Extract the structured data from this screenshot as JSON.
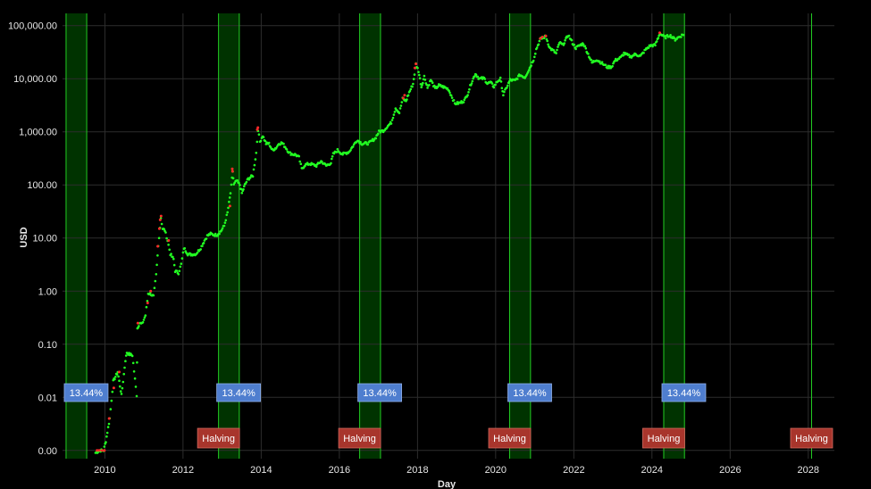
{
  "chart_data": {
    "type": "scatter",
    "xlabel": "Day",
    "ylabel": "USD",
    "y_scale": "log",
    "x_range": [
      "2008-12-01",
      "2028-09-01"
    ],
    "y_range": [
      0.0007,
      170000
    ],
    "x_tick_labels": [
      "2010",
      "2012",
      "2014",
      "2016",
      "2018",
      "2020",
      "2022",
      "2024",
      "2026",
      "2028"
    ],
    "x_tick_dates": [
      "2010-01-01",
      "2012-01-01",
      "2014-01-01",
      "2016-01-01",
      "2018-01-01",
      "2020-01-01",
      "2022-01-01",
      "2024-01-01",
      "2026-01-01",
      "2028-01-01"
    ],
    "y_tick_labels": [
      "0.00",
      "0.01",
      "0.10",
      "1.00",
      "10.00",
      "100.00",
      "1,000.00",
      "10,000.00",
      "100,000.00"
    ],
    "y_tick_values": [
      0.001,
      0.01,
      0.1,
      1,
      10,
      100,
      1000,
      10000,
      100000
    ],
    "grid": true,
    "background": "#000000",
    "colors": {
      "normal_point": "#22ff22",
      "highlight_point": "#ff2a2a",
      "band_fill": "#003300",
      "band_edge": "#22cc22",
      "percent_label_bg": "#4f7ecf",
      "halving_label_bg": "#a8352c",
      "axis_text": "#e6e6e6",
      "grid": "#2d2d2d"
    },
    "shaded_periods": [
      {
        "start": "2009-01-03",
        "end": "2009-07-15",
        "label": "13.44%"
      },
      {
        "start": "2012-11-28",
        "end": "2013-06-10",
        "label": "13.44%"
      },
      {
        "start": "2016-07-09",
        "end": "2017-01-20",
        "label": "13.44%"
      },
      {
        "start": "2020-05-11",
        "end": "2020-11-22",
        "label": "13.44%"
      },
      {
        "start": "2024-04-20",
        "end": "2024-10-31",
        "label": "13.44%"
      }
    ],
    "halving_markers": [
      {
        "date": "2012-11-28",
        "label": "Halving"
      },
      {
        "date": "2016-07-09",
        "label": "Halving"
      },
      {
        "date": "2020-05-11",
        "label": "Halving"
      },
      {
        "date": "2024-04-20",
        "label": "Halving"
      },
      {
        "date": "2028-02-01",
        "label": "Halving"
      }
    ],
    "series": [
      {
        "points": [
          [
            "2009-10-05",
            0.0009
          ],
          [
            "2009-11-15",
            0.001
          ],
          [
            "2009-12-20",
            0.001
          ],
          [
            "2010-01-10",
            0.0015
          ],
          [
            "2010-02-15",
            0.004
          ],
          [
            "2010-03-20",
            0.02
          ],
          [
            "2010-05-01",
            0.03
          ],
          [
            "2010-06-05",
            0.011
          ],
          [
            "2010-07-12",
            0.05
          ],
          [
            "2010-07-25",
            0.07
          ],
          [
            "2010-08-15",
            0.065
          ],
          [
            "2010-09-15",
            0.062
          ],
          [
            "2010-10-25",
            0.011
          ],
          [
            "2010-11-01",
            0.2
          ],
          [
            "2010-11-20",
            0.25
          ],
          [
            "2010-12-15",
            0.24
          ],
          [
            "2011-01-15",
            0.35
          ],
          [
            "2011-02-10",
            0.9
          ],
          [
            "2011-03-01",
            0.9
          ],
          [
            "2011-04-01",
            0.8
          ],
          [
            "2011-04-25",
            2.0
          ],
          [
            "2011-05-15",
            7.0
          ],
          [
            "2011-06-08",
            24.0
          ],
          [
            "2011-06-25",
            15.0
          ],
          [
            "2011-07-15",
            14.0
          ],
          [
            "2011-08-10",
            9.0
          ],
          [
            "2011-09-05",
            5.0
          ],
          [
            "2011-10-05",
            4.0
          ],
          [
            "2011-10-20",
            2.4
          ],
          [
            "2011-11-20",
            2.2
          ],
          [
            "2011-12-15",
            3.2
          ],
          [
            "2012-01-10",
            6.5
          ],
          [
            "2012-02-15",
            5.0
          ],
          [
            "2012-03-15",
            4.9
          ],
          [
            "2012-05-01",
            5.0
          ],
          [
            "2012-06-15",
            6.5
          ],
          [
            "2012-07-20",
            9.0
          ],
          [
            "2012-08-15",
            11.0
          ],
          [
            "2012-09-15",
            12.0
          ],
          [
            "2012-10-15",
            11.5
          ],
          [
            "2012-11-15",
            11.5
          ],
          [
            "2012-12-20",
            13.5
          ],
          [
            "2013-01-20",
            17.0
          ],
          [
            "2013-02-20",
            30.0
          ],
          [
            "2013-03-20",
            70.0
          ],
          [
            "2013-04-10",
            180.0
          ],
          [
            "2013-04-20",
            100.0
          ],
          [
            "2013-05-15",
            120.0
          ],
          [
            "2013-06-15",
            100.0
          ],
          [
            "2013-07-05",
            70.0
          ],
          [
            "2013-08-01",
            100.0
          ],
          [
            "2013-09-01",
            130.0
          ],
          [
            "2013-10-15",
            150.0
          ],
          [
            "2013-11-15",
            400.0
          ],
          [
            "2013-12-02",
            1100.0
          ],
          [
            "2013-12-20",
            650.0
          ],
          [
            "2014-01-15",
            850.0
          ],
          [
            "2014-02-15",
            600.0
          ],
          [
            "2014-03-15",
            600.0
          ],
          [
            "2014-04-15",
            450.0
          ],
          [
            "2014-05-20",
            500.0
          ],
          [
            "2014-06-15",
            600.0
          ],
          [
            "2014-07-15",
            620.0
          ],
          [
            "2014-08-20",
            500.0
          ],
          [
            "2014-09-20",
            400.0
          ],
          [
            "2014-10-20",
            380.0
          ],
          [
            "2014-11-20",
            370.0
          ],
          [
            "2014-12-20",
            330.0
          ],
          [
            "2015-01-15",
            200.0
          ],
          [
            "2015-02-15",
            240.0
          ],
          [
            "2015-04-01",
            250.0
          ],
          [
            "2015-06-01",
            230.0
          ],
          [
            "2015-07-15",
            280.0
          ],
          [
            "2015-09-01",
            230.0
          ],
          [
            "2015-10-15",
            260.0
          ],
          [
            "2015-11-05",
            380.0
          ],
          [
            "2015-12-15",
            450.0
          ],
          [
            "2016-02-01",
            380.0
          ],
          [
            "2016-04-01",
            420.0
          ],
          [
            "2016-06-15",
            700.0
          ],
          [
            "2016-08-01",
            600.0
          ],
          [
            "2016-10-01",
            610.0
          ],
          [
            "2016-12-01",
            750.0
          ],
          [
            "2017-01-05",
            1000.0
          ],
          [
            "2017-02-15",
            1050.0
          ],
          [
            "2017-03-15",
            1200.0
          ],
          [
            "2017-05-01",
            1500.0
          ],
          [
            "2017-06-10",
            2800.0
          ],
          [
            "2017-07-15",
            2300.0
          ],
          [
            "2017-08-15",
            4200.0
          ],
          [
            "2017-09-15",
            3800.0
          ],
          [
            "2017-10-15",
            5500.0
          ],
          [
            "2017-11-20",
            8000.0
          ],
          [
            "2017-12-17",
            19000.0
          ],
          [
            "2018-01-10",
            14000.0
          ],
          [
            "2018-02-06",
            7000.0
          ],
          [
            "2018-03-05",
            11000.0
          ],
          [
            "2018-04-05",
            6800.0
          ],
          [
            "2018-05-05",
            9500.0
          ],
          [
            "2018-06-15",
            6500.0
          ],
          [
            "2018-07-20",
            7500.0
          ],
          [
            "2018-09-01",
            7000.0
          ],
          [
            "2018-10-15",
            6400.0
          ],
          [
            "2018-11-20",
            4500.0
          ],
          [
            "2018-12-15",
            3400.0
          ],
          [
            "2019-02-01",
            3500.0
          ],
          [
            "2019-03-15",
            3900.0
          ],
          [
            "2019-04-15",
            5200.0
          ],
          [
            "2019-05-15",
            8000.0
          ],
          [
            "2019-06-26",
            12500.0
          ],
          [
            "2019-08-01",
            10000.0
          ],
          [
            "2019-09-15",
            10200.0
          ],
          [
            "2019-10-15",
            8200.0
          ],
          [
            "2019-11-15",
            8500.0
          ],
          [
            "2019-12-15",
            7100.0
          ],
          [
            "2020-01-15",
            8800.0
          ],
          [
            "2020-02-15",
            10000.0
          ],
          [
            "2020-03-13",
            5000.0
          ],
          [
            "2020-04-15",
            7000.0
          ],
          [
            "2020-05-15",
            9500.0
          ],
          [
            "2020-07-01",
            9200.0
          ],
          [
            "2020-08-15",
            11800.0
          ],
          [
            "2020-10-01",
            10600.0
          ],
          [
            "2020-11-15",
            16000.0
          ],
          [
            "2020-12-20",
            23000.0
          ],
          [
            "2021-01-15",
            36000.0
          ],
          [
            "2021-02-20",
            55000.0
          ],
          [
            "2021-04-14",
            63000.0
          ],
          [
            "2021-05-20",
            38000.0
          ],
          [
            "2021-06-20",
            34000.0
          ],
          [
            "2021-07-20",
            30000.0
          ],
          [
            "2021-08-20",
            48000.0
          ],
          [
            "2021-09-20",
            43000.0
          ],
          [
            "2021-11-10",
            67000.0
          ],
          [
            "2021-12-20",
            47000.0
          ],
          [
            "2022-01-20",
            38000.0
          ],
          [
            "2022-03-01",
            43000.0
          ],
          [
            "2022-04-01",
            46000.0
          ],
          [
            "2022-05-15",
            29000.0
          ],
          [
            "2022-06-20",
            20000.0
          ],
          [
            "2022-08-01",
            23000.0
          ],
          [
            "2022-09-15",
            20000.0
          ],
          [
            "2022-11-10",
            16500.0
          ],
          [
            "2022-12-20",
            16800.0
          ],
          [
            "2023-01-20",
            22000.0
          ],
          [
            "2023-03-15",
            25000.0
          ],
          [
            "2023-04-15",
            30000.0
          ],
          [
            "2023-06-15",
            26000.0
          ],
          [
            "2023-08-01",
            29000.0
          ],
          [
            "2023-09-15",
            26500.0
          ],
          [
            "2023-11-01",
            35000.0
          ],
          [
            "2023-12-15",
            42000.0
          ],
          [
            "2024-02-01",
            43000.0
          ],
          [
            "2024-03-14",
            71000.0
          ],
          [
            "2024-05-01",
            60000.0
          ],
          [
            "2024-06-15",
            66000.0
          ],
          [
            "2024-08-05",
            55000.0
          ],
          [
            "2024-09-20",
            63000.0
          ],
          [
            "2024-10-31",
            70000.0
          ]
        ],
        "highlighted_points": [
          [
            "2009-10-20",
            0.001
          ],
          [
            "2009-11-10",
            0.001
          ],
          [
            "2009-12-05",
            0.001
          ],
          [
            "2009-12-28",
            0.001
          ],
          [
            "2010-02-10",
            0.004
          ],
          [
            "2010-03-25",
            0.015
          ],
          [
            "2010-05-15",
            0.03
          ],
          [
            "2010-11-05",
            0.25
          ],
          [
            "2011-02-05",
            0.6
          ],
          [
            "2011-03-05",
            1.0
          ],
          [
            "2011-05-10",
            7.0
          ],
          [
            "2011-05-25",
            15.0
          ],
          [
            "2011-06-02",
            22.0
          ],
          [
            "2011-06-10",
            26.0
          ],
          [
            "2011-08-20",
            9.0
          ],
          [
            "2013-03-15",
            40.0
          ],
          [
            "2013-04-05",
            200.0
          ],
          [
            "2013-04-08",
            180.0
          ],
          [
            "2013-11-25",
            1100.0
          ],
          [
            "2013-12-01",
            1200.0
          ],
          [
            "2017-08-20",
            4300.0
          ],
          [
            "2017-09-02",
            4900.0
          ],
          [
            "2017-12-07",
            16000.0
          ],
          [
            "2017-12-17",
            19000.0
          ],
          [
            "2021-02-21",
            57000.0
          ],
          [
            "2021-03-13",
            61000.0
          ],
          [
            "2021-04-14",
            64000.0
          ],
          [
            "2024-03-14",
            73000.0
          ]
        ]
      }
    ]
  }
}
